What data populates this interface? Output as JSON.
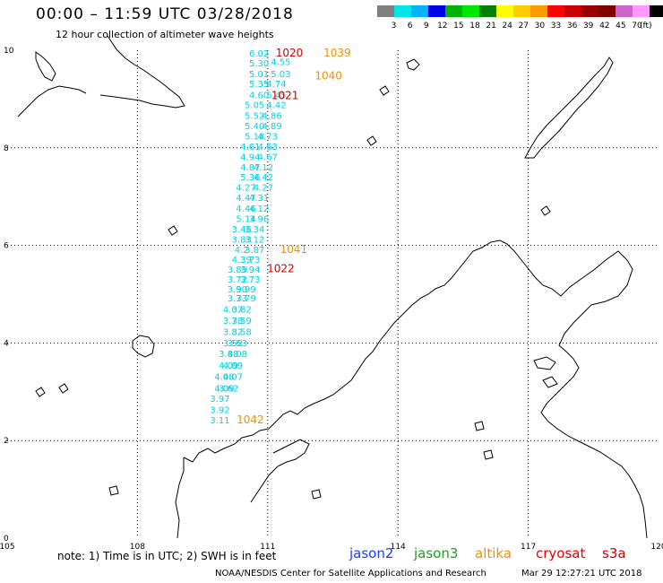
{
  "header": {
    "title": "00:00  –  11:59 UTC 03/28/2018",
    "subtitle": "12 hour collection of altimeter wave heights"
  },
  "color_scale": {
    "unit": "(ft)",
    "colors": [
      "#808080",
      "#00e6e6",
      "#00b3ff",
      "#0000e6",
      "#00b300",
      "#00e600",
      "#008000",
      "#ffff00",
      "#ffcc00",
      "#ff9900",
      "#ff0000",
      "#cc0000",
      "#990000",
      "#800000",
      "#cc66cc",
      "#ff99ff",
      "#000000"
    ],
    "labels": [
      "3",
      "6",
      "9",
      "12",
      "15",
      "18",
      "21",
      "24",
      "27",
      "30",
      "33",
      "36",
      "39",
      "42",
      "45",
      "70"
    ]
  },
  "map": {
    "lon_min": 105,
    "lon_max": 120,
    "lat_min": 0,
    "lat_max": 10,
    "x_ticks": [
      "105",
      "108",
      "111",
      "114",
      "117",
      "120"
    ],
    "y_ticks": [
      "0",
      "2",
      "4",
      "6",
      "8",
      "10"
    ]
  },
  "observations": [
    {
      "satellite": "s3a",
      "color": "#00d2e6",
      "lon": 110.8,
      "lat": 9.87,
      "v": "6.02"
    },
    {
      "satellite": "s3a",
      "color": "#00d2e6",
      "lon": 110.8,
      "lat": 9.67,
      "v": "5.30"
    },
    {
      "satellite": "s3a",
      "color": "#00d2e6",
      "lon": 110.8,
      "lat": 9.45,
      "v": "5.01"
    },
    {
      "satellite": "s3a",
      "color": "#00d2e6",
      "lon": 110.8,
      "lat": 9.25,
      "v": "5.35"
    },
    {
      "satellite": "s3a",
      "color": "#00d2e6",
      "lon": 110.8,
      "lat": 9.02,
      "v": "4.60"
    },
    {
      "satellite": "s3a",
      "color": "#00d2e6",
      "lon": 110.7,
      "lat": 8.81,
      "v": "5.05"
    },
    {
      "satellite": "s3a",
      "color": "#00d2e6",
      "lon": 110.7,
      "lat": 8.59,
      "v": "5.52"
    },
    {
      "satellite": "s3a",
      "color": "#00d2e6",
      "lon": 110.7,
      "lat": 8.38,
      "v": "5.40"
    },
    {
      "satellite": "s3a",
      "color": "#00d2e6",
      "lon": 110.7,
      "lat": 8.17,
      "v": "5.18"
    },
    {
      "satellite": "s3a",
      "color": "#00d2e6",
      "lon": 110.6,
      "lat": 7.96,
      "v": "4.61"
    },
    {
      "satellite": "s3a",
      "color": "#00d2e6",
      "lon": 110.6,
      "lat": 7.75,
      "v": "4.94"
    },
    {
      "satellite": "s3a",
      "color": "#00d2e6",
      "lon": 110.6,
      "lat": 7.54,
      "v": "4.87"
    },
    {
      "satellite": "s3a",
      "color": "#00d2e6",
      "lon": 110.6,
      "lat": 7.33,
      "v": "5.36"
    },
    {
      "satellite": "s3a",
      "color": "#00d2e6",
      "lon": 110.5,
      "lat": 7.12,
      "v": "4.27"
    },
    {
      "satellite": "s3a",
      "color": "#00d2e6",
      "lon": 110.5,
      "lat": 6.91,
      "v": "4.47"
    },
    {
      "satellite": "s3a",
      "color": "#00d2e6",
      "lon": 110.5,
      "lat": 6.69,
      "v": "4.46"
    },
    {
      "satellite": "s3a",
      "color": "#00d2e6",
      "lon": 110.5,
      "lat": 6.48,
      "v": "5.14"
    },
    {
      "satellite": "s3a",
      "color": "#00d2e6",
      "lon": 110.4,
      "lat": 6.27,
      "v": "3.46"
    },
    {
      "satellite": "s3a",
      "color": "#00d2e6",
      "lon": 110.4,
      "lat": 6.06,
      "v": "3.83"
    },
    {
      "satellite": "s3a",
      "color": "#00d2e6",
      "lon": 110.4,
      "lat": 5.85,
      "v": "4.2"
    },
    {
      "satellite": "s3a",
      "color": "#00d2e6",
      "lon": 110.4,
      "lat": 5.64,
      "v": "4.39"
    },
    {
      "satellite": "s3a",
      "color": "#00d2e6",
      "lon": 110.3,
      "lat": 5.44,
      "v": "3.89"
    },
    {
      "satellite": "s3a",
      "color": "#00d2e6",
      "lon": 110.3,
      "lat": 5.24,
      "v": "3.72"
    },
    {
      "satellite": "s3a",
      "color": "#00d2e6",
      "lon": 110.3,
      "lat": 5.04,
      "v": "3.90"
    },
    {
      "satellite": "s3a",
      "color": "#00d2e6",
      "lon": 110.3,
      "lat": 4.85,
      "v": "3.73"
    },
    {
      "satellite": "s3a",
      "color": "#00d2e6",
      "lon": 110.2,
      "lat": 4.62,
      "v": "4.07"
    },
    {
      "satellite": "s3a",
      "color": "#00d2e6",
      "lon": 110.2,
      "lat": 4.39,
      "v": "3.78"
    },
    {
      "satellite": "s3a",
      "color": "#00d2e6",
      "lon": 110.2,
      "lat": 4.16,
      "v": "3.82"
    },
    {
      "satellite": "s3a",
      "color": "#00d2e6",
      "lon": 110.2,
      "lat": 3.93,
      "v": "3.58"
    },
    {
      "satellite": "s3a",
      "color": "#00d2e6",
      "lon": 110.1,
      "lat": 3.71,
      "v": "3.88"
    },
    {
      "satellite": "s3a",
      "color": "#00d2e6",
      "lon": 110.1,
      "lat": 3.47,
      "v": "4.09"
    },
    {
      "satellite": "s3a",
      "color": "#00d2e6",
      "lon": 110.0,
      "lat": 3.24,
      "v": "4.08"
    },
    {
      "satellite": "s3a",
      "color": "#00d2e6",
      "lon": 110.0,
      "lat": 3.01,
      "v": "4.09"
    },
    {
      "satellite": "s3a",
      "color": "#00d2e6",
      "lon": 109.9,
      "lat": 2.79,
      "v": "3.97"
    },
    {
      "satellite": "s3a",
      "color": "#00d2e6",
      "lon": 109.9,
      "lat": 2.56,
      "v": "3.92"
    },
    {
      "satellite": "s3a",
      "color": "#00d2e6",
      "lon": 109.9,
      "lat": 2.35,
      "v": "3.11"
    },
    {
      "satellite": "s3a",
      "color": "#00d2e6",
      "lon": 111.3,
      "lat": 9.7,
      "v": "4.55"
    },
    {
      "satellite": "s3a",
      "color": "#00d2e6",
      "lon": 111.3,
      "lat": 9.45,
      "v": "5.03"
    },
    {
      "satellite": "s3a",
      "color": "#00d2e6",
      "lon": 111.2,
      "lat": 9.25,
      "v": "4.74"
    },
    {
      "satellite": "s3a",
      "color": "#00d2e6",
      "lon": 111.2,
      "lat": 9.02,
      "v": "5.45"
    },
    {
      "satellite": "s3a",
      "color": "#00d2e6",
      "lon": 111.2,
      "lat": 8.81,
      "v": "4.42"
    },
    {
      "satellite": "s3a",
      "color": "#00d2e6",
      "lon": 111.1,
      "lat": 8.59,
      "v": "4.86"
    },
    {
      "satellite": "s3a",
      "color": "#00d2e6",
      "lon": 111.1,
      "lat": 8.38,
      "v": "4.89"
    },
    {
      "satellite": "s3a",
      "color": "#00d2e6",
      "lon": 111.0,
      "lat": 8.17,
      "v": "4.73"
    },
    {
      "satellite": "s3a",
      "color": "#00d2e6",
      "lon": 111.0,
      "lat": 7.96,
      "v": "4.63"
    },
    {
      "satellite": "s3a",
      "color": "#00d2e6",
      "lon": 111.0,
      "lat": 7.75,
      "v": "4.67"
    },
    {
      "satellite": "s3a",
      "color": "#00d2e6",
      "lon": 110.9,
      "lat": 7.54,
      "v": "4.12"
    },
    {
      "satellite": "s3a",
      "color": "#00d2e6",
      "lon": 110.9,
      "lat": 7.33,
      "v": "4.42"
    },
    {
      "satellite": "s3a",
      "color": "#00d2e6",
      "lon": 110.9,
      "lat": 7.12,
      "v": "4.27"
    },
    {
      "satellite": "s3a",
      "color": "#00d2e6",
      "lon": 110.8,
      "lat": 6.91,
      "v": "4.31"
    },
    {
      "satellite": "s3a",
      "color": "#00d2e6",
      "lon": 110.8,
      "lat": 6.69,
      "v": "4.12"
    },
    {
      "satellite": "s3a",
      "color": "#00d2e6",
      "lon": 110.8,
      "lat": 6.48,
      "v": "3.96"
    },
    {
      "satellite": "s3a",
      "color": "#00d2e6",
      "lon": 110.7,
      "lat": 6.27,
      "v": "3.34"
    },
    {
      "satellite": "s3a",
      "color": "#00d2e6",
      "lon": 110.7,
      "lat": 6.06,
      "v": "3.12"
    },
    {
      "satellite": "s3a",
      "color": "#00d2e6",
      "lon": 110.7,
      "lat": 5.85,
      "v": "3.87"
    },
    {
      "satellite": "s3a",
      "color": "#00d2e6",
      "lon": 110.6,
      "lat": 5.64,
      "v": "3.73"
    },
    {
      "satellite": "s3a",
      "color": "#00d2e6",
      "lon": 110.6,
      "lat": 5.44,
      "v": "3.94"
    },
    {
      "satellite": "s3a",
      "color": "#00d2e6",
      "lon": 110.6,
      "lat": 5.24,
      "v": "3.73"
    },
    {
      "satellite": "s3a",
      "color": "#00d2e6",
      "lon": 110.5,
      "lat": 5.04,
      "v": "3.99"
    },
    {
      "satellite": "s3a",
      "color": "#00d2e6",
      "lon": 110.5,
      "lat": 4.85,
      "v": "3.79"
    },
    {
      "satellite": "s3a",
      "color": "#00d2e6",
      "lon": 110.4,
      "lat": 4.62,
      "v": "3.82"
    },
    {
      "satellite": "s3a",
      "color": "#00d2e6",
      "lon": 110.4,
      "lat": 4.39,
      "v": "3.59"
    },
    {
      "satellite": "s3a",
      "color": "#00d2e6",
      "lon": 110.4,
      "lat": 4.16,
      "v": "3.58"
    },
    {
      "satellite": "s3a",
      "color": "#00d2e6",
      "lon": 110.3,
      "lat": 3.93,
      "v": "3.53"
    },
    {
      "satellite": "s3a",
      "color": "#00d2e6",
      "lon": 110.3,
      "lat": 3.71,
      "v": "4.08"
    },
    {
      "satellite": "s3a",
      "color": "#00d2e6",
      "lon": 110.2,
      "lat": 3.47,
      "v": "4.09"
    },
    {
      "satellite": "s3a",
      "color": "#00d2e6",
      "lon": 110.2,
      "lat": 3.24,
      "v": "4.07"
    },
    {
      "satellite": "s3a",
      "color": "#00d2e6",
      "lon": 110.1,
      "lat": 3.01,
      "v": "3.62"
    },
    {
      "satellite": "cryosat",
      "color": "#cc0000",
      "lon": 111.5,
      "lat": 9.87,
      "v": "1020"
    },
    {
      "satellite": "cryosat",
      "color": "#cc0000",
      "lon": 111.4,
      "lat": 9.0,
      "v": "1021"
    },
    {
      "satellite": "cryosat",
      "color": "#cc0000",
      "lon": 111.3,
      "lat": 5.45,
      "v": "1022"
    },
    {
      "satellite": "altika",
      "color": "#f29000",
      "lon": 112.6,
      "lat": 9.87,
      "v": "1039"
    },
    {
      "satellite": "altika",
      "color": "#f29000",
      "lon": 112.4,
      "lat": 9.4,
      "v": "1040"
    },
    {
      "satellite": "altika",
      "color": "#f29000",
      "lon": 111.6,
      "lat": 5.85,
      "v": "1041"
    },
    {
      "satellite": "altika",
      "color": "#f29000",
      "lon": 110.6,
      "lat": 2.35,
      "v": "1042"
    }
  ],
  "footer": {
    "note": "note:  1) Time is in UTC;  2) SWH is in feet",
    "satellites": [
      {
        "name": "jason2",
        "color": "#1a3cff"
      },
      {
        "name": "jason3",
        "color": "#1f9e1f"
      },
      {
        "name": "altika",
        "color": "#f29000"
      },
      {
        "name": "cryosat",
        "color": "#e60000"
      },
      {
        "name": "s3a",
        "color": "#cc0000"
      }
    ],
    "credit": "NOAA/NESDIS Center for Satellite Applications and Research",
    "timestamp": "Mar 29 12:27:21 UTC 2018"
  }
}
